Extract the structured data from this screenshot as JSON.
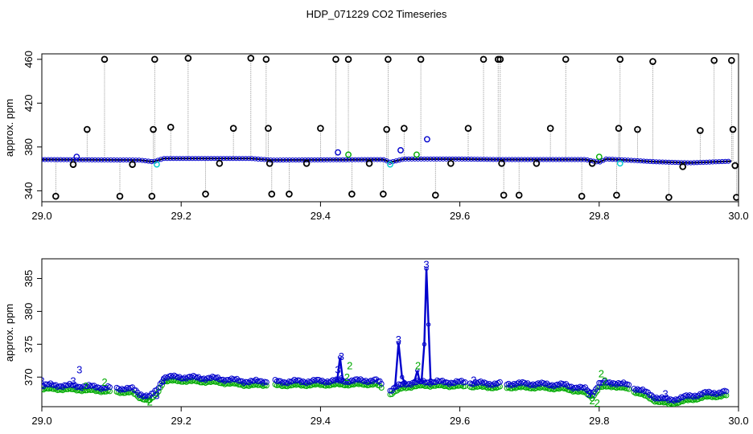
{
  "title": "HDP_071229  CO2 Timeseries",
  "colors": {
    "raw": "#000000",
    "blue": "#0000cc",
    "green": "#00aa00",
    "cyan": "#00cccc",
    "grey": "#999999"
  },
  "chart_data": [
    {
      "type": "scatter",
      "ylabel": "approx. ppm",
      "xlim": [
        29.0,
        30.0
      ],
      "ylim": [
        330,
        465
      ],
      "xticks": [
        "29.0",
        "29.2",
        "29.4",
        "29.6",
        "29.8",
        "30.0"
      ],
      "yticks": [
        "340",
        "380",
        "420",
        "460"
      ],
      "baseline": [
        [
          29.0,
          368.5
        ],
        [
          29.14,
          368.0
        ],
        [
          29.16,
          366.5
        ],
        [
          29.175,
          369.5
        ],
        [
          29.3,
          369.5
        ],
        [
          29.33,
          368.0
        ],
        [
          29.49,
          368.5
        ],
        [
          29.5,
          366.0
        ],
        [
          29.52,
          369.0
        ],
        [
          29.6,
          369.0
        ],
        [
          29.66,
          368.5
        ],
        [
          29.78,
          368.5
        ],
        [
          29.8,
          366.0
        ],
        [
          29.81,
          369.0
        ],
        [
          29.84,
          368.0
        ],
        [
          29.88,
          366.5
        ],
        [
          29.93,
          365.5
        ],
        [
          29.99,
          367.0
        ]
      ],
      "spikes": [
        [
          29.02,
          335
        ],
        [
          29.045,
          364
        ],
        [
          29.065,
          396
        ],
        [
          29.09,
          460
        ],
        [
          29.112,
          335
        ],
        [
          29.13,
          364
        ],
        [
          29.158,
          335
        ],
        [
          29.16,
          396
        ],
        [
          29.162,
          460
        ],
        [
          29.185,
          398
        ],
        [
          29.21,
          461
        ],
        [
          29.235,
          337
        ],
        [
          29.255,
          365
        ],
        [
          29.275,
          397
        ],
        [
          29.3,
          461
        ],
        [
          29.322,
          460
        ],
        [
          29.325,
          397
        ],
        [
          29.327,
          365
        ],
        [
          29.33,
          337
        ],
        [
          29.355,
          337
        ],
        [
          29.38,
          365
        ],
        [
          29.4,
          397
        ],
        [
          29.422,
          460
        ],
        [
          29.44,
          460
        ],
        [
          29.445,
          337
        ],
        [
          29.47,
          365
        ],
        [
          29.49,
          337
        ],
        [
          29.495,
          396
        ],
        [
          29.497,
          460
        ],
        [
          29.52,
          397
        ],
        [
          29.544,
          460
        ],
        [
          29.565,
          336
        ],
        [
          29.587,
          365
        ],
        [
          29.612,
          397
        ],
        [
          29.634,
          460
        ],
        [
          29.655,
          460
        ],
        [
          29.658,
          460
        ],
        [
          29.66,
          365
        ],
        [
          29.663,
          336
        ],
        [
          29.685,
          336
        ],
        [
          29.71,
          365
        ],
        [
          29.73,
          397
        ],
        [
          29.752,
          460
        ],
        [
          29.775,
          335
        ],
        [
          29.79,
          365
        ],
        [
          29.825,
          336
        ],
        [
          29.828,
          397
        ],
        [
          29.83,
          460
        ],
        [
          29.855,
          396
        ],
        [
          29.877,
          458
        ],
        [
          29.9,
          334
        ],
        [
          29.92,
          362
        ],
        [
          29.945,
          395
        ],
        [
          29.965,
          459
        ],
        [
          29.99,
          459
        ],
        [
          29.992,
          396
        ],
        [
          29.995,
          363
        ],
        [
          29.997,
          334
        ]
      ],
      "blue_points": [
        [
          29.05,
          371
        ],
        [
          29.425,
          375
        ],
        [
          29.515,
          377
        ],
        [
          29.553,
          387
        ]
      ],
      "green_points": [
        [
          29.44,
          373
        ],
        [
          29.538,
          373
        ],
        [
          29.8,
          371
        ]
      ],
      "cyan_points": [
        [
          29.165,
          364
        ],
        [
          29.5,
          364
        ],
        [
          29.83,
          365
        ]
      ]
    },
    {
      "type": "scatter",
      "ylabel": "approx. ppm",
      "xlim": [
        29.0,
        30.0
      ],
      "ylim": [
        365.5,
        388
      ],
      "xticks": [
        "29.0",
        "29.2",
        "29.4",
        "29.6",
        "29.8",
        "30.0"
      ],
      "yticks": [
        "370",
        "375",
        "380",
        "385"
      ],
      "gaps": [
        [
          29.1,
          29.106
        ],
        [
          29.325,
          29.333
        ],
        [
          29.49,
          29.5
        ],
        [
          29.61,
          29.615
        ],
        [
          29.66,
          29.667
        ],
        [
          29.845,
          29.85
        ]
      ],
      "series": [
        {
          "name": "blue",
          "values": [
            [
              29.0,
              368.8
            ],
            [
              29.04,
              368.7
            ],
            [
              29.08,
              368.5
            ],
            [
              29.13,
              368.2
            ],
            [
              29.14,
              367.5
            ],
            [
              29.155,
              367.0
            ],
            [
              29.165,
              368.0
            ],
            [
              29.175,
              370.0
            ],
            [
              29.2,
              370.0
            ],
            [
              29.25,
              369.8
            ],
            [
              29.3,
              369.3
            ],
            [
              29.32,
              369.4
            ],
            [
              29.333,
              369.3
            ],
            [
              29.4,
              369.4
            ],
            [
              29.48,
              369.5
            ],
            [
              29.5,
              368.0
            ],
            [
              29.51,
              368.5
            ],
            [
              29.52,
              369.0
            ],
            [
              29.55,
              369.3
            ],
            [
              29.6,
              369.2
            ],
            [
              29.65,
              369.0
            ],
            [
              29.7,
              369.0
            ],
            [
              29.75,
              368.8
            ],
            [
              29.78,
              368.2
            ],
            [
              29.79,
              367.5
            ],
            [
              29.8,
              369.0
            ],
            [
              29.82,
              369.2
            ],
            [
              29.84,
              368.8
            ],
            [
              29.86,
              368.0
            ],
            [
              29.88,
              367.0
            ],
            [
              29.9,
              366.5
            ],
            [
              29.95,
              367.5
            ],
            [
              29.985,
              367.8
            ]
          ]
        },
        {
          "name": "green",
          "offset": -0.6
        }
      ],
      "spike_traces": [
        [
          [
            29.507,
            368.5
          ],
          [
            29.512,
            375.2
          ],
          [
            29.517,
            370.0
          ],
          [
            29.521,
            369.2
          ]
        ],
        [
          [
            29.545,
            369.3
          ],
          [
            29.549,
            375.0
          ],
          [
            29.552,
            386.5
          ],
          [
            29.555,
            378.0
          ],
          [
            29.558,
            369.5
          ]
        ],
        [
          [
            29.424,
            369.5
          ],
          [
            29.428,
            373.0
          ],
          [
            29.432,
            369.6
          ]
        ],
        [
          [
            29.535,
            369.4
          ],
          [
            29.539,
            371.0
          ],
          [
            29.542,
            369.5
          ]
        ]
      ],
      "labels": [
        {
          "x": 29.0,
          "y": 369.5,
          "text": "3",
          "color": "blue"
        },
        {
          "x": 29.045,
          "y": 369.5,
          "text": "3",
          "color": "blue"
        },
        {
          "x": 29.054,
          "y": 371.2,
          "text": "3",
          "color": "blue"
        },
        {
          "x": 29.063,
          "y": 368.7,
          "text": "2",
          "color": "green"
        },
        {
          "x": 29.09,
          "y": 369.3,
          "text": "2",
          "color": "green"
        },
        {
          "x": 29.155,
          "y": 366.3,
          "text": "2",
          "color": "green"
        },
        {
          "x": 29.165,
          "y": 367.3,
          "text": "3",
          "color": "blue"
        },
        {
          "x": 29.174,
          "y": 369.5,
          "text": "3",
          "color": "blue"
        },
        {
          "x": 29.425,
          "y": 371.2,
          "text": "3",
          "color": "blue"
        },
        {
          "x": 29.43,
          "y": 373.2,
          "text": "3",
          "color": "blue"
        },
        {
          "x": 29.43,
          "y": 369.8,
          "text": "3",
          "color": "blue"
        },
        {
          "x": 29.438,
          "y": 370.0,
          "text": "2",
          "color": "green"
        },
        {
          "x": 29.442,
          "y": 371.8,
          "text": "2",
          "color": "green"
        },
        {
          "x": 29.512,
          "y": 375.8,
          "text": "3",
          "color": "blue"
        },
        {
          "x": 29.54,
          "y": 371.8,
          "text": "2",
          "color": "green"
        },
        {
          "x": 29.552,
          "y": 387.2,
          "text": "3",
          "color": "blue"
        },
        {
          "x": 29.62,
          "y": 369.6,
          "text": "3",
          "color": "blue"
        },
        {
          "x": 29.785,
          "y": 367.5,
          "text": "3",
          "color": "blue"
        },
        {
          "x": 29.79,
          "y": 366.5,
          "text": "2",
          "color": "green"
        },
        {
          "x": 29.797,
          "y": 366.1,
          "text": "2",
          "color": "green"
        },
        {
          "x": 29.803,
          "y": 370.6,
          "text": "2",
          "color": "green"
        },
        {
          "x": 29.808,
          "y": 369.5,
          "text": "2",
          "color": "green"
        },
        {
          "x": 29.895,
          "y": 367.5,
          "text": "3",
          "color": "blue"
        }
      ]
    }
  ]
}
